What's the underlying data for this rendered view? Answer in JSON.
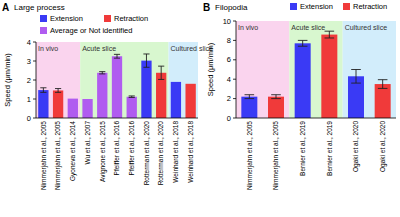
{
  "chart_data": [
    {
      "type": "bar",
      "panel_label": "A",
      "title": "Large process",
      "y_label": "Speed (μm/min)",
      "categories": [
        "Nimmerjahn et al., 2005",
        "Nimmerjahn et al., 2005",
        "Gyoneva et al., 2014",
        "Wu et al., 2007",
        "Avignone et al., 2015",
        "Pfeiffer et al., 2016",
        "Pfeiffer et al., 2016",
        "Rotterman et al., 2020",
        "Rotterman et al., 2020",
        "Weinhard et al., 2018",
        "Weinhard et al., 2018"
      ],
      "series": [
        {
          "name": "Extension",
          "color": "#3a3af5",
          "values": [
            1.47,
            null,
            null,
            null,
            null,
            null,
            null,
            3.02,
            null,
            1.9,
            null
          ],
          "errors": [
            0.12,
            null,
            null,
            null,
            null,
            null,
            null,
            0.35,
            null,
            null,
            null
          ]
        },
        {
          "name": "Retraction",
          "color": "#f03a3a",
          "values": [
            null,
            1.45,
            null,
            null,
            null,
            null,
            null,
            null,
            2.38,
            null,
            1.8
          ],
          "errors": [
            null,
            0.1,
            null,
            null,
            null,
            null,
            null,
            null,
            0.35,
            null,
            null
          ]
        },
        {
          "name": "Average or Not identified",
          "color": "#b05cf0",
          "values": [
            null,
            null,
            1.02,
            1.0,
            2.38,
            3.25,
            1.12,
            null,
            null,
            null,
            null
          ],
          "errors": [
            null,
            null,
            null,
            null,
            0.06,
            0.1,
            0.04,
            null,
            null,
            null,
            null
          ]
        }
      ],
      "regions": [
        {
          "label": "In vivo",
          "from": 0,
          "to": 2,
          "color": "#fad4ee"
        },
        {
          "label": "Acute slice",
          "from": 3,
          "to": 8,
          "color": "#d8f7cf"
        },
        {
          "label": "Cultured slice",
          "from": 9,
          "to": 10,
          "color": "#d2edfb"
        }
      ],
      "ylim": [
        0,
        4
      ],
      "yticks": [
        0,
        1,
        2,
        3,
        4
      ],
      "grid": false
    },
    {
      "type": "bar",
      "panel_label": "B",
      "title": "Filopodia",
      "y_label": "Speed (μm/min)",
      "categories": [
        "Nimmerjahn et al., 2005",
        "Nimmerjahn et al., 2005",
        "Bernier et al., 2019",
        "Bernier et al., 2019",
        "Ogaki et al., 2020",
        "Ogaki et al., 2020"
      ],
      "series": [
        {
          "name": "Extension",
          "color": "#3a3af5",
          "values": [
            2.2,
            null,
            7.7,
            null,
            4.3,
            null
          ],
          "errors": [
            0.2,
            null,
            0.3,
            null,
            0.7,
            null
          ]
        },
        {
          "name": "Retraction",
          "color": "#f03a3a",
          "values": [
            null,
            2.2,
            null,
            8.6,
            null,
            3.5
          ],
          "errors": [
            null,
            0.2,
            null,
            0.35,
            null,
            0.45
          ]
        }
      ],
      "regions": [
        {
          "label": "In vivo",
          "from": 0,
          "to": 1,
          "color": "#fad4ee"
        },
        {
          "label": "Acute slice",
          "from": 2,
          "to": 3,
          "color": "#d8f7cf"
        },
        {
          "label": "Cultured slice",
          "from": 4,
          "to": 5,
          "color": "#d2edfb"
        }
      ],
      "ylim": [
        0,
        10
      ],
      "yticks": [
        0,
        2,
        4,
        6,
        8,
        10
      ],
      "grid": false
    }
  ]
}
